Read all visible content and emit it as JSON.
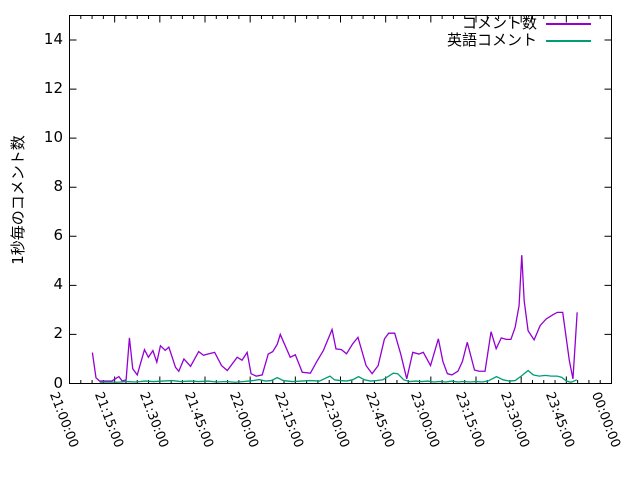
{
  "chart_data": {
    "type": "line",
    "title": "",
    "xlabel": "",
    "ylabel": "1秒毎のコメント数",
    "x_start": "21:00:00",
    "x_end": "00:00:00",
    "x_tick_labels": [
      "21:00:00",
      "21:15:00",
      "21:30:00",
      "21:45:00",
      "22:00:00",
      "22:15:00",
      "22:30:00",
      "22:45:00",
      "23:00:00",
      "23:15:00",
      "23:30:00",
      "23:45:00",
      "00:00:00"
    ],
    "x_tick_minutes": [
      0,
      15,
      30,
      45,
      60,
      75,
      90,
      105,
      120,
      135,
      150,
      165,
      180
    ],
    "x_minor_divisions": 4,
    "xlim_minutes": [
      0,
      180
    ],
    "y_ticks": [
      0,
      2,
      4,
      6,
      8,
      10,
      12,
      14
    ],
    "ylim": [
      0,
      15
    ],
    "grid": false,
    "legend_position": "top-right-inside",
    "background_color": "#ffffff",
    "axis_color": "#000000",
    "series": [
      {
        "name": "コメント数",
        "color": "#9400d3",
        "points": [
          [
            7.6,
            1.26
          ],
          [
            8.8,
            0.23
          ],
          [
            10,
            0.1
          ],
          [
            12,
            0.1
          ],
          [
            14,
            0.1
          ],
          [
            16.4,
            0.28
          ],
          [
            17.5,
            0.1
          ],
          [
            18.8,
            0.15
          ],
          [
            19.9,
            1.86
          ],
          [
            21,
            0.6
          ],
          [
            22.5,
            0.35
          ],
          [
            24.9,
            1.38
          ],
          [
            26.2,
            1.07
          ],
          [
            27.7,
            1.34
          ],
          [
            29,
            0.87
          ],
          [
            30.2,
            1.54
          ],
          [
            31.8,
            1.35
          ],
          [
            33,
            1.48
          ],
          [
            35.2,
            0.66
          ],
          [
            36.3,
            0.5
          ],
          [
            38,
            1.0
          ],
          [
            40.2,
            0.7
          ],
          [
            42.9,
            1.3
          ],
          [
            44.5,
            1.15
          ],
          [
            46,
            1.2
          ],
          [
            48.2,
            1.27
          ],
          [
            50.5,
            0.73
          ],
          [
            52.4,
            0.53
          ],
          [
            55.7,
            1.07
          ],
          [
            57.3,
            0.95
          ],
          [
            59,
            1.27
          ],
          [
            60.3,
            0.4
          ],
          [
            62,
            0.3
          ],
          [
            64,
            0.35
          ],
          [
            66,
            1.2
          ],
          [
            67.5,
            1.3
          ],
          [
            69,
            1.6
          ],
          [
            70,
            2.0
          ],
          [
            73.3,
            1.07
          ],
          [
            75,
            1.17
          ],
          [
            77.3,
            0.46
          ],
          [
            80,
            0.42
          ],
          [
            82,
            0.87
          ],
          [
            84.3,
            1.34
          ],
          [
            87.2,
            2.2
          ],
          [
            88.5,
            1.41
          ],
          [
            90.3,
            1.38
          ],
          [
            92,
            1.21
          ],
          [
            94,
            1.61
          ],
          [
            95.8,
            1.88
          ],
          [
            98.5,
            0.73
          ],
          [
            100.5,
            0.4
          ],
          [
            102.5,
            0.73
          ],
          [
            104.6,
            1.82
          ],
          [
            106,
            2.05
          ],
          [
            108,
            2.05
          ],
          [
            110,
            1.2
          ],
          [
            112,
            0.19
          ],
          [
            114,
            1.27
          ],
          [
            116,
            1.2
          ],
          [
            117.5,
            1.27
          ],
          [
            119.9,
            0.73
          ],
          [
            122.5,
            1.82
          ],
          [
            124,
            0.9
          ],
          [
            125.5,
            0.4
          ],
          [
            127,
            0.35
          ],
          [
            129,
            0.5
          ],
          [
            130.5,
            0.9
          ],
          [
            132.1,
            1.68
          ],
          [
            134.5,
            0.55
          ],
          [
            136,
            0.5
          ],
          [
            138,
            0.5
          ],
          [
            140,
            2.11
          ],
          [
            141.7,
            1.42
          ],
          [
            143.4,
            1.86
          ],
          [
            145,
            1.8
          ],
          [
            146.6,
            1.8
          ],
          [
            148,
            2.29
          ],
          [
            149.3,
            3.17
          ],
          [
            150.2,
            5.23
          ],
          [
            151,
            3.37
          ],
          [
            152.3,
            2.15
          ],
          [
            154.3,
            1.78
          ],
          [
            156.3,
            2.36
          ],
          [
            158.3,
            2.63
          ],
          [
            160.5,
            2.8
          ],
          [
            162,
            2.9
          ],
          [
            163.8,
            2.9
          ],
          [
            166,
            0.93
          ],
          [
            167.2,
            0.19
          ],
          [
            168.6,
            2.9
          ]
        ]
      },
      {
        "name": "英語コメント",
        "color": "#009e73",
        "points": [
          [
            10,
            0.05
          ],
          [
            13,
            0.06
          ],
          [
            16,
            0.05
          ],
          [
            19,
            0.08
          ],
          [
            22,
            0.06
          ],
          [
            25,
            0.1
          ],
          [
            28,
            0.08
          ],
          [
            31,
            0.1
          ],
          [
            34,
            0.12
          ],
          [
            37,
            0.08
          ],
          [
            40,
            0.1
          ],
          [
            43,
            0.08
          ],
          [
            46,
            0.1
          ],
          [
            49,
            0.06
          ],
          [
            52,
            0.08
          ],
          [
            55,
            0.05
          ],
          [
            58,
            0.08
          ],
          [
            61,
            0.12
          ],
          [
            63,
            0.16
          ],
          [
            65,
            0.1
          ],
          [
            67,
            0.12
          ],
          [
            69,
            0.24
          ],
          [
            71,
            0.12
          ],
          [
            74,
            0.08
          ],
          [
            77,
            0.1
          ],
          [
            80,
            0.12
          ],
          [
            83,
            0.1
          ],
          [
            86.5,
            0.3
          ],
          [
            88,
            0.15
          ],
          [
            90,
            0.12
          ],
          [
            92,
            0.1
          ],
          [
            94,
            0.15
          ],
          [
            96,
            0.28
          ],
          [
            98,
            0.15
          ],
          [
            100,
            0.1
          ],
          [
            102,
            0.12
          ],
          [
            104,
            0.15
          ],
          [
            106,
            0.3
          ],
          [
            107.5,
            0.42
          ],
          [
            109,
            0.4
          ],
          [
            111,
            0.15
          ],
          [
            113,
            0.08
          ],
          [
            115,
            0.1
          ],
          [
            117,
            0.08
          ],
          [
            119,
            0.1
          ],
          [
            121,
            0.06
          ],
          [
            123,
            0.08
          ],
          [
            125,
            0.06
          ],
          [
            127,
            0.1
          ],
          [
            129,
            0.06
          ],
          [
            131,
            0.08
          ],
          [
            133,
            0.06
          ],
          [
            135,
            0.08
          ],
          [
            137,
            0.06
          ],
          [
            139,
            0.1
          ],
          [
            141.8,
            0.28
          ],
          [
            144,
            0.15
          ],
          [
            146,
            0.1
          ],
          [
            148,
            0.12
          ],
          [
            150,
            0.3
          ],
          [
            152.3,
            0.53
          ],
          [
            154,
            0.35
          ],
          [
            156,
            0.3
          ],
          [
            158,
            0.33
          ],
          [
            160,
            0.3
          ],
          [
            162,
            0.3
          ],
          [
            163.5,
            0.25
          ],
          [
            165,
            0.1
          ],
          [
            166.5,
            0.05
          ],
          [
            168.5,
            0.15
          ]
        ]
      }
    ]
  }
}
